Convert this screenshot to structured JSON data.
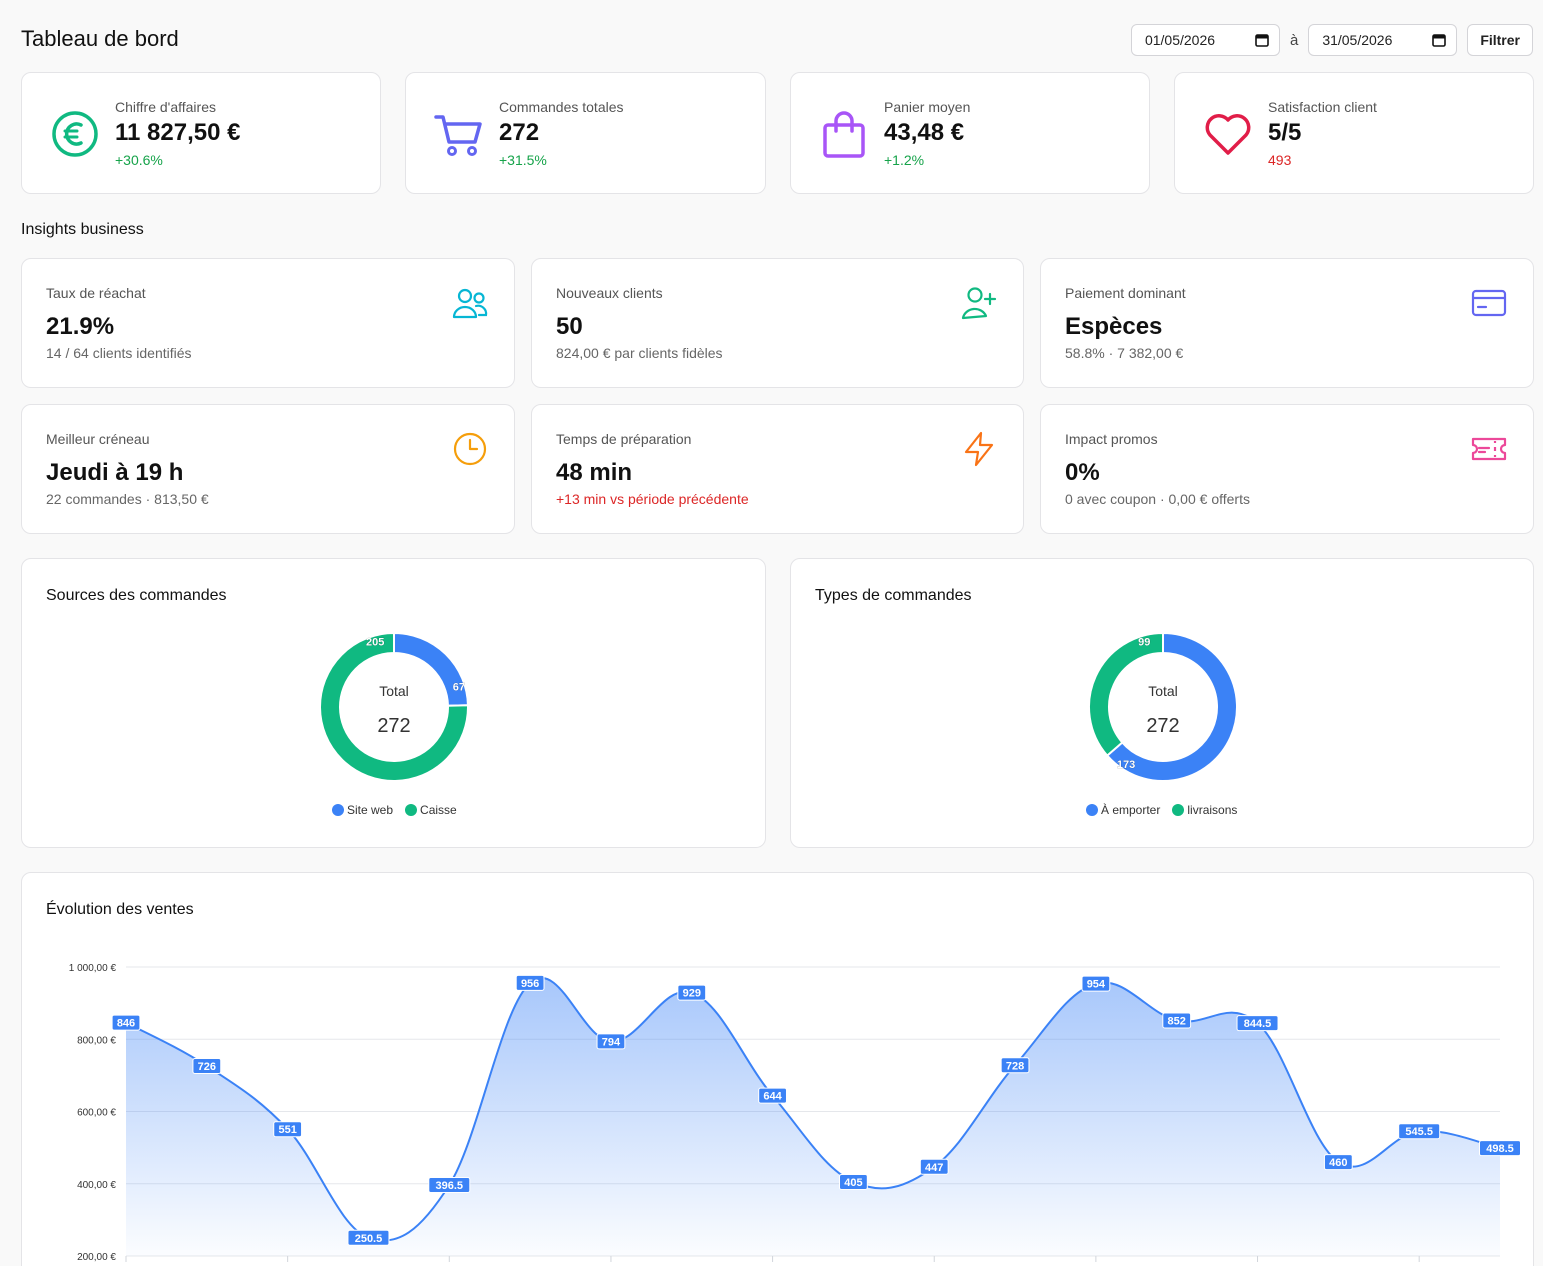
{
  "header": {
    "title": "Tableau de bord",
    "date_from": "01/05/2026",
    "date_sep": "à",
    "date_to": "31/05/2026",
    "filter_label": "Filtrer"
  },
  "kpis": [
    {
      "label": "Chiffre d'affaires",
      "value": "11 827,50 €",
      "change": "+30.6%",
      "icon": "euro-icon",
      "color": "#10b981"
    },
    {
      "label": "Commandes totales",
      "value": "272",
      "change": "+31.5%",
      "icon": "cart-icon",
      "color": "#6366f1"
    },
    {
      "label": "Panier moyen",
      "value": "43,48 €",
      "change": "+1.2%",
      "icon": "shopping-bag-icon",
      "color": "#a855f7"
    },
    {
      "label": "Satisfaction client",
      "value": "5/5",
      "change": "493",
      "icon": "heart-icon",
      "color": "#e11d48"
    }
  ],
  "insights_title": "Insights business",
  "insights": [
    {
      "label": "Taux de réachat",
      "value": "21.9%",
      "sub": "14 / 64 clients identifiés",
      "icon": "users-icon",
      "color": "#06b6d4"
    },
    {
      "label": "Nouveaux clients",
      "value": "50",
      "sub": "824,00 € par clients fidèles",
      "icon": "user-plus-icon",
      "color": "#10b981"
    },
    {
      "label": "Paiement dominant",
      "value": "Espèces",
      "sub": "58.8% · 7 382,00 €",
      "icon": "credit-card-icon",
      "color": "#6366f1"
    },
    {
      "label": "Meilleur créneau",
      "value": "Jeudi à 19 h",
      "sub": "22 commandes · 813,50 €",
      "icon": "clock-icon",
      "color": "#f59e0b"
    },
    {
      "label": "Temps de préparation",
      "value": "48 min",
      "sub": "+13 min vs période précédente",
      "icon": "lightning-icon",
      "color": "#f97316"
    },
    {
      "label": "Impact promos",
      "value": "0%",
      "sub": "0 avec coupon · 0,00 € offerts",
      "icon": "ticket-icon",
      "color": "#ec4899"
    }
  ],
  "donuts": [
    {
      "title": "Sources des commandes",
      "center_label": "Total",
      "center_value": "272",
      "slices": [
        {
          "label": "Site web",
          "value": 67,
          "color": "#3b82f6"
        },
        {
          "label": "Caisse",
          "value": 205,
          "color": "#10b981"
        }
      ]
    },
    {
      "title": "Types de commandes",
      "center_label": "Total",
      "center_value": "272",
      "slices": [
        {
          "label": "À emporter",
          "value": 173,
          "color": "#3b82f6"
        },
        {
          "label": "livraisons",
          "value": 99,
          "color": "#10b981"
        }
      ]
    }
  ],
  "sales_title": "Évolution des ventes",
  "chart_data": {
    "type": "area",
    "title": "Évolution des ventes",
    "y_ticks": [
      "1 000,00 €",
      "800,00 €",
      "600,00 €",
      "400,00 €",
      "200,00 €"
    ],
    "ylim": [
      200,
      1000
    ],
    "values": [
      846,
      726,
      551,
      250.5,
      396.5,
      956,
      794,
      929,
      644,
      405,
      447,
      728,
      954,
      852,
      844.5,
      460,
      545.5,
      498.5
    ],
    "labels": [
      "846",
      "726",
      "551",
      "250.5",
      "396.5",
      "956",
      "794",
      "929",
      "644",
      "405",
      "447",
      "728",
      "954",
      "852",
      "844.5",
      "460",
      "545.5",
      "498.5"
    ],
    "line_color": "#3b82f6",
    "grid": true
  }
}
